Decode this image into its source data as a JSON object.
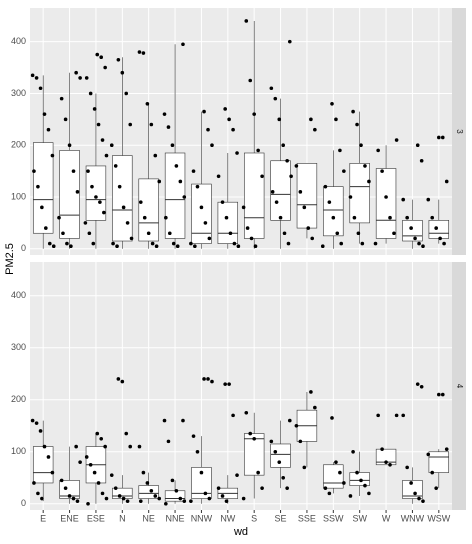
{
  "chart_data": [
    {
      "type": "box",
      "facet": "3",
      "y_label": "PM2.5",
      "ylim": [
        -12,
        465
      ],
      "yticks": [
        0,
        100,
        200,
        300,
        400
      ],
      "boxes": [
        {
          "min": 0,
          "q1": 30,
          "median": 95,
          "q3": 205,
          "max": 335,
          "points": [
            335,
            330,
            310,
            260,
            230,
            180,
            150,
            120,
            80,
            40,
            10,
            5
          ]
        },
        {
          "min": 0,
          "q1": 20,
          "median": 65,
          "q3": 190,
          "max": 340,
          "points": [
            340,
            330,
            290,
            250,
            200,
            150,
            110,
            60,
            30,
            10,
            5
          ]
        },
        {
          "min": 0,
          "q1": 55,
          "median": 95,
          "q3": 160,
          "max": 300,
          "points": [
            375,
            370,
            350,
            330,
            300,
            270,
            240,
            210,
            180,
            150,
            120,
            100,
            90,
            70,
            50,
            30,
            10
          ]
        },
        {
          "min": 0,
          "q1": 15,
          "median": 75,
          "q3": 180,
          "max": 370,
          "points": [
            365,
            340,
            300,
            240,
            200,
            160,
            120,
            80,
            50,
            20,
            10,
            5
          ]
        },
        {
          "min": 0,
          "q1": 15,
          "median": 50,
          "q3": 135,
          "max": 280,
          "points": [
            380,
            378,
            280,
            240,
            180,
            130,
            90,
            60,
            30,
            10,
            5
          ]
        },
        {
          "min": 0,
          "q1": 20,
          "median": 95,
          "q3": 185,
          "max": 395,
          "points": [
            395,
            260,
            235,
            200,
            160,
            130,
            100,
            60,
            30,
            10,
            5
          ]
        },
        {
          "min": 0,
          "q1": 10,
          "median": 30,
          "q3": 125,
          "max": 265,
          "points": [
            265,
            230,
            200,
            150,
            120,
            80,
            50,
            20,
            10,
            5
          ]
        },
        {
          "min": 0,
          "q1": 10,
          "median": 30,
          "q3": 90,
          "max": 185,
          "points": [
            270,
            250,
            230,
            185,
            140,
            90,
            60,
            30,
            10,
            5
          ]
        },
        {
          "min": 0,
          "q1": 20,
          "median": 60,
          "q3": 185,
          "max": 440,
          "points": [
            440,
            325,
            260,
            190,
            140,
            80,
            40,
            20,
            5
          ]
        },
        {
          "min": 0,
          "q1": 55,
          "median": 105,
          "q3": 170,
          "max": 290,
          "points": [
            400,
            310,
            290,
            250,
            200,
            170,
            140,
            110,
            90,
            60,
            30,
            10
          ]
        },
        {
          "min": 20,
          "q1": 40,
          "median": 85,
          "q3": 165,
          "max": 165,
          "points": [
            250,
            230,
            160,
            110,
            80,
            40,
            20
          ]
        },
        {
          "min": 0,
          "q1": 25,
          "median": 75,
          "q3": 120,
          "max": 190,
          "points": [
            280,
            250,
            190,
            150,
            120,
            90,
            60,
            30,
            10,
            5
          ]
        },
        {
          "min": 10,
          "q1": 50,
          "median": 120,
          "q3": 165,
          "max": 265,
          "points": [
            265,
            240,
            200,
            160,
            130,
            100,
            60,
            30,
            10
          ]
        },
        {
          "min": 10,
          "q1": 20,
          "median": 55,
          "q3": 155,
          "max": 200,
          "points": [
            210,
            190,
            150,
            100,
            60,
            30,
            10
          ]
        },
        {
          "min": 0,
          "q1": 15,
          "median": 25,
          "q3": 55,
          "max": 95,
          "points": [
            200,
            170,
            95,
            60,
            40,
            20,
            10,
            5
          ]
        },
        {
          "min": 10,
          "q1": 20,
          "median": 30,
          "q3": 55,
          "max": 95,
          "points": [
            215,
            215,
            130,
            95,
            60,
            40,
            20,
            10
          ]
        }
      ]
    },
    {
      "type": "box",
      "facet": "4",
      "x_label": "wd",
      "categories": [
        "E",
        "ENE",
        "ESE",
        "N",
        "NE",
        "NNE",
        "NNW",
        "NW",
        "S",
        "SE",
        "SSE",
        "SSW",
        "SW",
        "W",
        "WNW",
        "WSW"
      ],
      "ylim": [
        -12,
        465
      ],
      "yticks": [
        0,
        100,
        200,
        300,
        400
      ],
      "boxes": [
        {
          "min": 5,
          "q1": 40,
          "median": 60,
          "q3": 110,
          "max": 160,
          "points": [
            160,
            155,
            140,
            110,
            90,
            60,
            40,
            20,
            10
          ]
        },
        {
          "min": 0,
          "q1": 10,
          "median": 15,
          "q3": 45,
          "max": 110,
          "points": [
            110,
            80,
            45,
            30,
            15,
            10,
            5
          ]
        },
        {
          "min": 0,
          "q1": 40,
          "median": 75,
          "q3": 110,
          "max": 135,
          "points": [
            135,
            125,
            110,
            90,
            75,
            60,
            40,
            20,
            10,
            0
          ]
        },
        {
          "min": 0,
          "q1": 10,
          "median": 15,
          "q3": 30,
          "max": 55,
          "points": [
            240,
            235,
            135,
            110,
            55,
            30,
            15,
            10,
            5
          ]
        },
        {
          "min": 0,
          "q1": 10,
          "median": 20,
          "q3": 35,
          "max": 60,
          "points": [
            110,
            60,
            40,
            25,
            15,
            10,
            5
          ]
        },
        {
          "min": 0,
          "q1": 5,
          "median": 10,
          "q3": 25,
          "max": 45,
          "points": [
            160,
            160,
            120,
            45,
            25,
            10,
            5,
            0
          ]
        },
        {
          "min": 0,
          "q1": 10,
          "median": 20,
          "q3": 70,
          "max": 130,
          "points": [
            240,
            240,
            235,
            130,
            100,
            60,
            20,
            10,
            5
          ]
        },
        {
          "min": 0,
          "q1": 10,
          "median": 20,
          "q3": 30,
          "max": 55,
          "points": [
            230,
            230,
            170,
            55,
            30,
            15,
            5
          ]
        },
        {
          "min": 10,
          "q1": 55,
          "median": 125,
          "q3": 135,
          "max": 175,
          "points": [
            175,
            135,
            125,
            60,
            30,
            10
          ]
        },
        {
          "min": 30,
          "q1": 70,
          "median": 95,
          "q3": 115,
          "max": 160,
          "points": [
            160,
            120,
            100,
            80,
            50,
            30
          ]
        },
        {
          "min": 70,
          "q1": 120,
          "median": 150,
          "q3": 180,
          "max": 215,
          "points": [
            215,
            185,
            150,
            120,
            70
          ]
        },
        {
          "min": 20,
          "q1": 30,
          "median": 40,
          "q3": 75,
          "max": 80,
          "points": [
            165,
            80,
            60,
            40,
            30,
            20
          ]
        },
        {
          "min": 15,
          "q1": 35,
          "median": 45,
          "q3": 60,
          "max": 100,
          "points": [
            100,
            60,
            45,
            35,
            20,
            15
          ]
        },
        {
          "min": 75,
          "q1": 75,
          "median": 80,
          "q3": 105,
          "max": 105,
          "points": [
            170,
            170,
            105,
            80,
            75
          ]
        },
        {
          "min": 0,
          "q1": 10,
          "median": 15,
          "q3": 45,
          "max": 70,
          "points": [
            230,
            225,
            170,
            70,
            40,
            20,
            10,
            5
          ]
        },
        {
          "min": 30,
          "q1": 60,
          "median": 90,
          "q3": 100,
          "max": 105,
          "points": [
            210,
            210,
            105,
            95,
            60,
            30
          ]
        }
      ]
    }
  ]
}
